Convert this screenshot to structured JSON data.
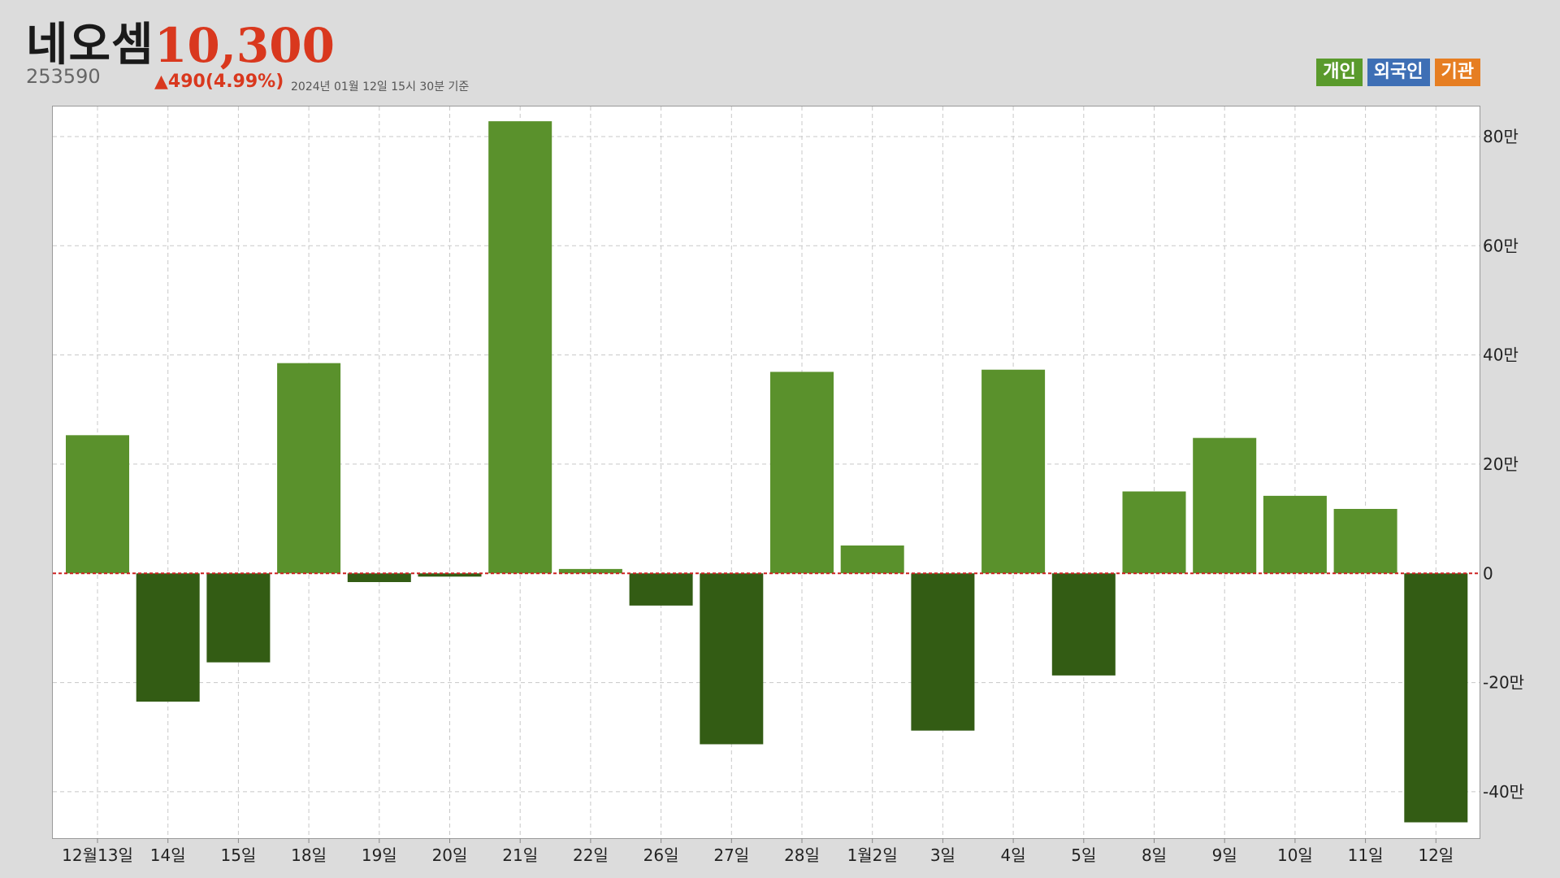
{
  "header": {
    "stock_name": "네오셈",
    "stock_code": "253590",
    "price": "10,300",
    "change": "▲490(4.99%)",
    "timestamp": "2024년 01월 12일 15시 30분 기준"
  },
  "legend": [
    {
      "label": "개인",
      "color": "#5a9a2c"
    },
    {
      "label": "외국인",
      "color": "#3e6fb5"
    },
    {
      "label": "기관",
      "color": "#e67e22"
    }
  ],
  "colors": {
    "positive_bar": "#5a912c",
    "negative_bar": "#335c14",
    "zero_line": "#cc2222",
    "grid": "#c8c8c8"
  },
  "chart_data": {
    "type": "bar",
    "series_name": "개인",
    "categories": [
      "12월13일",
      "14일",
      "15일",
      "18일",
      "19일",
      "20일",
      "21일",
      "22일",
      "26일",
      "27일",
      "28일",
      "1월2일",
      "3일",
      "4일",
      "5일",
      "8일",
      "9일",
      "10일",
      "11일",
      "12일"
    ],
    "values": [
      253000,
      -235000,
      -163000,
      385000,
      -16000,
      -6000,
      828000,
      8000,
      -59000,
      -313000,
      369000,
      51000,
      -288000,
      373000,
      -187000,
      150000,
      248000,
      142000,
      118000,
      -456000
    ],
    "y_ticks": [
      80,
      60,
      40,
      20,
      0,
      -20,
      -40
    ],
    "y_tick_labels": [
      "80만",
      "60만",
      "40만",
      "20만",
      "0",
      "-20만",
      "-40만"
    ],
    "ylim": [
      -485000,
      855000
    ],
    "grid": true,
    "axis_position": "right"
  }
}
